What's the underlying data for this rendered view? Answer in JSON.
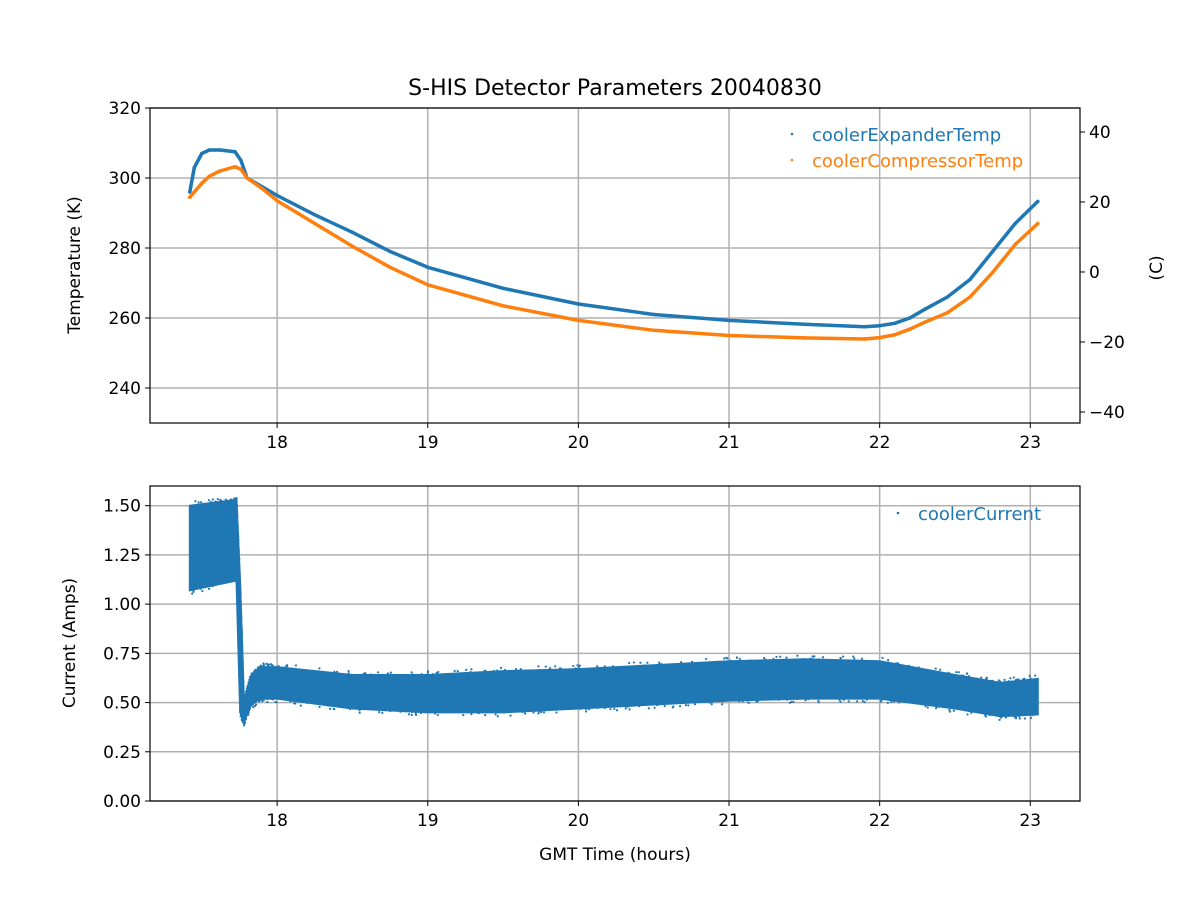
{
  "colors": {
    "blue": "#1f77b4",
    "orange": "#ff7f0e",
    "grid": "#b0b0b0"
  },
  "chart_data": [
    {
      "type": "scatter",
      "title": "S-HIS Detector Parameters 20040830",
      "xlabel": "",
      "ylabel": "Temperature (K)",
      "ylabel_right": "(C)",
      "xlim": [
        17.156,
        23.33
      ],
      "ylim": [
        230,
        320
      ],
      "ylim_right": [
        -43.15,
        46.85
      ],
      "xticks": [
        "18",
        "19",
        "20",
        "21",
        "22",
        "23"
      ],
      "yticks": [
        "240",
        "260",
        "280",
        "300",
        "320"
      ],
      "yticks_right": [
        "−40",
        "−20",
        "0",
        "20",
        "40"
      ],
      "grid": true,
      "legend_position": "top-right",
      "series": [
        {
          "name": "coolerExpanderTemp",
          "color": "#1f77b4",
          "x": [
            17.42,
            17.45,
            17.5,
            17.55,
            17.62,
            17.72,
            17.76,
            17.8,
            17.9,
            18.0,
            18.25,
            18.5,
            18.75,
            19.0,
            19.5,
            20.0,
            20.5,
            21.0,
            21.5,
            21.9,
            22.0,
            22.1,
            22.2,
            22.3,
            22.45,
            22.6,
            22.75,
            22.9,
            23.05
          ],
          "y": [
            296,
            303,
            307,
            308,
            308,
            307.5,
            305,
            300,
            297.5,
            295,
            289.5,
            284.5,
            279,
            274.5,
            268.5,
            264,
            261,
            259.3,
            258.2,
            257.5,
            257.8,
            258.5,
            260,
            262.5,
            266,
            271,
            279,
            287,
            293.3
          ]
        },
        {
          "name": "coolerCompressorTemp",
          "color": "#ff7f0e",
          "x": [
            17.42,
            17.45,
            17.5,
            17.55,
            17.62,
            17.72,
            17.76,
            17.8,
            17.9,
            18.0,
            18.25,
            18.5,
            18.75,
            19.0,
            19.5,
            20.0,
            20.5,
            21.0,
            21.5,
            21.9,
            22.0,
            22.1,
            22.2,
            22.3,
            22.45,
            22.6,
            22.75,
            22.9,
            23.05
          ],
          "y": [
            294.5,
            296,
            298.5,
            300.5,
            302,
            303.2,
            302.5,
            300,
            297,
            293.5,
            287,
            280.5,
            274.5,
            269.5,
            263.5,
            259.3,
            256.5,
            255,
            254.3,
            254,
            254.4,
            255.2,
            256.8,
            258.8,
            261.5,
            266,
            273,
            281,
            287
          ]
        }
      ]
    },
    {
      "type": "scatter",
      "title": "",
      "xlabel": "GMT Time (hours)",
      "ylabel": "Current (Amps)",
      "xlim": [
        17.156,
        23.33
      ],
      "ylim": [
        0,
        1.6
      ],
      "xticks": [
        "18",
        "19",
        "20",
        "21",
        "22",
        "23"
      ],
      "yticks": [
        "0.00",
        "0.25",
        "0.50",
        "0.75",
        "1.00",
        "1.25",
        "1.50"
      ],
      "grid": true,
      "legend_position": "top-right",
      "series": [
        {
          "name": "coolerCurrent",
          "color": "#1f77b4",
          "x": [
            17.42,
            17.73,
            17.755,
            17.78,
            17.82,
            17.88,
            18.0,
            18.5,
            19.0,
            19.5,
            20.0,
            20.5,
            21.0,
            21.5,
            22.0,
            22.5,
            22.8,
            23.05
          ],
          "min": [
            1.07,
            1.12,
            0.45,
            0.4,
            0.48,
            0.52,
            0.52,
            0.47,
            0.45,
            0.45,
            0.47,
            0.49,
            0.51,
            0.52,
            0.52,
            0.47,
            0.43,
            0.44
          ],
          "max": [
            1.5,
            1.53,
            1.1,
            0.5,
            0.62,
            0.68,
            0.68,
            0.64,
            0.64,
            0.66,
            0.67,
            0.69,
            0.71,
            0.72,
            0.71,
            0.64,
            0.6,
            0.62
          ]
        }
      ]
    }
  ]
}
